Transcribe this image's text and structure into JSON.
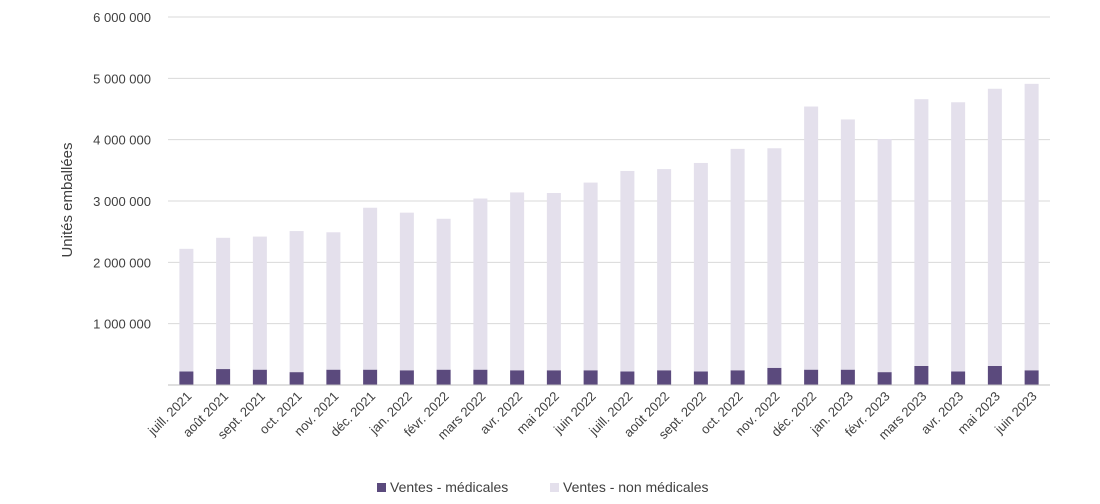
{
  "chart_data": {
    "type": "bar",
    "stacked": true,
    "ylabel": "Unités emballées",
    "ylim": [
      0,
      6000000
    ],
    "yticks": [
      0,
      1000000,
      2000000,
      3000000,
      4000000,
      5000000,
      6000000
    ],
    "ytick_labels": [
      "",
      "1 000 000",
      "2 000 000",
      "3 000 000",
      "4 000 000",
      "5 000 000",
      "6 000 000"
    ],
    "grid": true,
    "legend_position": "bottom",
    "categories": [
      "juill. 2021",
      "août 2021",
      "sept. 2021",
      "oct. 2021",
      "nov. 2021",
      "déc. 2021",
      "jan. 2022",
      "févr. 2022",
      "mars 2022",
      "avr. 2022",
      "mai 2022",
      "juin 2022",
      "juill. 2022",
      "août 2022",
      "sept. 2022",
      "oct. 2022",
      "nov. 2022",
      "déc. 2022",
      "jan. 2023",
      "févr. 2023",
      "mars 2023",
      "avr. 2023",
      "mai 2023",
      "juin 2023"
    ],
    "series": [
      {
        "name": "Ventes - médicales",
        "color": "#5b4a7d",
        "values": [
          220000,
          260000,
          250000,
          210000,
          250000,
          250000,
          240000,
          250000,
          250000,
          240000,
          240000,
          240000,
          220000,
          240000,
          220000,
          240000,
          280000,
          250000,
          250000,
          210000,
          310000,
          220000,
          310000,
          240000
        ]
      },
      {
        "name": "Ventes - non médicales",
        "color": "#e4e0ec",
        "values": [
          2000000,
          2140000,
          2170000,
          2300000,
          2240000,
          2640000,
          2570000,
          2460000,
          2790000,
          2900000,
          2890000,
          3060000,
          3270000,
          3280000,
          3400000,
          3610000,
          3580000,
          4290000,
          4080000,
          3800000,
          4350000,
          4390000,
          4520000,
          4670000
        ]
      }
    ]
  }
}
